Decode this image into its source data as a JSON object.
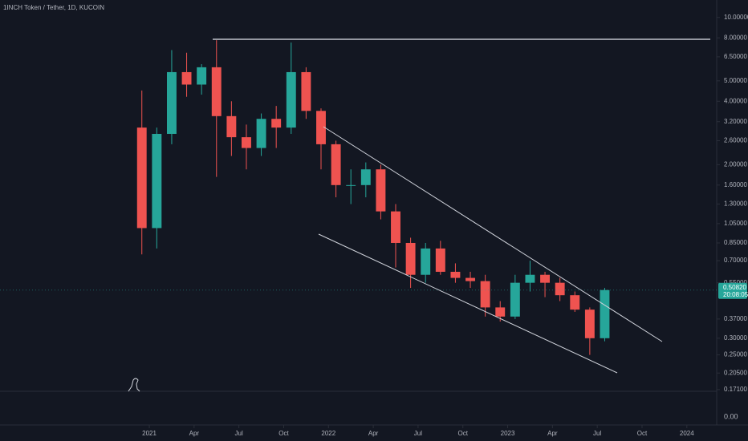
{
  "chart_data": {
    "type": "candlestick",
    "title": "1INCH Token / Tether, 1D, KUCOIN",
    "log_scale": true,
    "grid": false,
    "up_color": "#26a69a",
    "down_color": "#ef5350",
    "x": [
      "2020-12",
      "2021-01",
      "2021-02",
      "2021-03",
      "2021-04",
      "2021-05",
      "2021-06",
      "2021-07",
      "2021-08",
      "2021-09",
      "2021-10",
      "2021-11",
      "2021-12",
      "2022-01",
      "2022-02",
      "2022-03",
      "2022-04",
      "2022-05",
      "2022-06",
      "2022-07",
      "2022-08",
      "2022-09",
      "2022-10",
      "2022-11",
      "2022-12",
      "2023-01",
      "2023-02",
      "2023-03",
      "2023-04",
      "2023-05",
      "2023-06",
      "2023-07"
    ],
    "open": [
      3.0,
      1.0,
      2.8,
      5.5,
      4.8,
      5.8,
      3.4,
      2.7,
      2.4,
      3.3,
      3.0,
      5.5,
      3.6,
      2.5,
      1.6,
      1.6,
      1.9,
      1.2,
      0.85,
      0.6,
      0.8,
      0.62,
      0.58,
      0.56,
      0.42,
      0.38,
      0.55,
      0.6,
      0.55,
      0.48,
      0.41,
      0.3
    ],
    "high": [
      4.5,
      3.0,
      7.0,
      6.8,
      6.0,
      7.8,
      4.0,
      3.1,
      3.5,
      3.8,
      7.6,
      5.8,
      3.7,
      2.6,
      1.9,
      2.05,
      2.0,
      1.3,
      0.9,
      0.85,
      0.87,
      0.68,
      0.62,
      0.6,
      0.45,
      0.6,
      0.7,
      0.62,
      0.58,
      0.5,
      0.42,
      0.52
    ],
    "low": [
      0.75,
      0.8,
      2.5,
      4.2,
      4.3,
      1.75,
      2.2,
      1.9,
      2.2,
      2.4,
      2.8,
      3.3,
      1.9,
      1.4,
      1.3,
      1.4,
      1.1,
      0.65,
      0.52,
      0.55,
      0.6,
      0.55,
      0.52,
      0.38,
      0.36,
      0.37,
      0.5,
      0.47,
      0.45,
      0.4,
      0.25,
      0.29
    ],
    "close": [
      1.0,
      2.8,
      5.5,
      4.8,
      5.8,
      3.4,
      2.7,
      2.4,
      3.3,
      3.0,
      5.5,
      3.6,
      2.5,
      1.6,
      1.6,
      1.9,
      1.2,
      0.85,
      0.6,
      0.8,
      0.62,
      0.58,
      0.56,
      0.42,
      0.38,
      0.55,
      0.6,
      0.55,
      0.48,
      0.41,
      0.3,
      0.508
    ],
    "xlim": [
      "2020-03",
      "2024-03"
    ],
    "xticks": [
      {
        "value": "2021-01",
        "label": "2021"
      },
      {
        "value": "2021-04",
        "label": "Apr"
      },
      {
        "value": "2021-07",
        "label": "Jul"
      },
      {
        "value": "2021-10",
        "label": "Oct"
      },
      {
        "value": "2022-01",
        "label": "2022"
      },
      {
        "value": "2022-04",
        "label": "Apr"
      },
      {
        "value": "2022-07",
        "label": "Jul"
      },
      {
        "value": "2022-10",
        "label": "Oct"
      },
      {
        "value": "2023-01",
        "label": "2023"
      },
      {
        "value": "2023-04",
        "label": "Apr"
      },
      {
        "value": "2023-07",
        "label": "Jul"
      },
      {
        "value": "2023-10",
        "label": "Oct"
      },
      {
        "value": "2024-01",
        "label": "2024"
      }
    ],
    "ylim": [
      0.165,
      12.1
    ],
    "yticks": [
      {
        "value": 10,
        "label": "10.00000"
      },
      {
        "value": 8,
        "label": "8.00000"
      },
      {
        "value": 6.5,
        "label": "6.50000"
      },
      {
        "value": 5,
        "label": "5.00000"
      },
      {
        "value": 4,
        "label": "4.00000"
      },
      {
        "value": 3.2,
        "label": "3.20000"
      },
      {
        "value": 2.6,
        "label": "2.60000"
      },
      {
        "value": 2,
        "label": "2.00000"
      },
      {
        "value": 1.6,
        "label": "1.60000"
      },
      {
        "value": 1.3,
        "label": "1.30000"
      },
      {
        "value": 1.05,
        "label": "1.05000"
      },
      {
        "value": 0.85,
        "label": "0.85000"
      },
      {
        "value": 0.7,
        "label": "0.70000"
      },
      {
        "value": 0.55,
        "label": "0.55000"
      },
      {
        "value": 0.37,
        "label": "0.37000"
      },
      {
        "value": 0.3,
        "label": "0.30000"
      },
      {
        "value": 0.25,
        "label": "0.25000"
      },
      {
        "value": 0.205,
        "label": "0.20500"
      },
      {
        "value": 0.171,
        "label": "0.17100"
      }
    ],
    "last_price_label": "0.50820",
    "countdown": "20:08:05",
    "lower_pane_tick": "0.00"
  }
}
